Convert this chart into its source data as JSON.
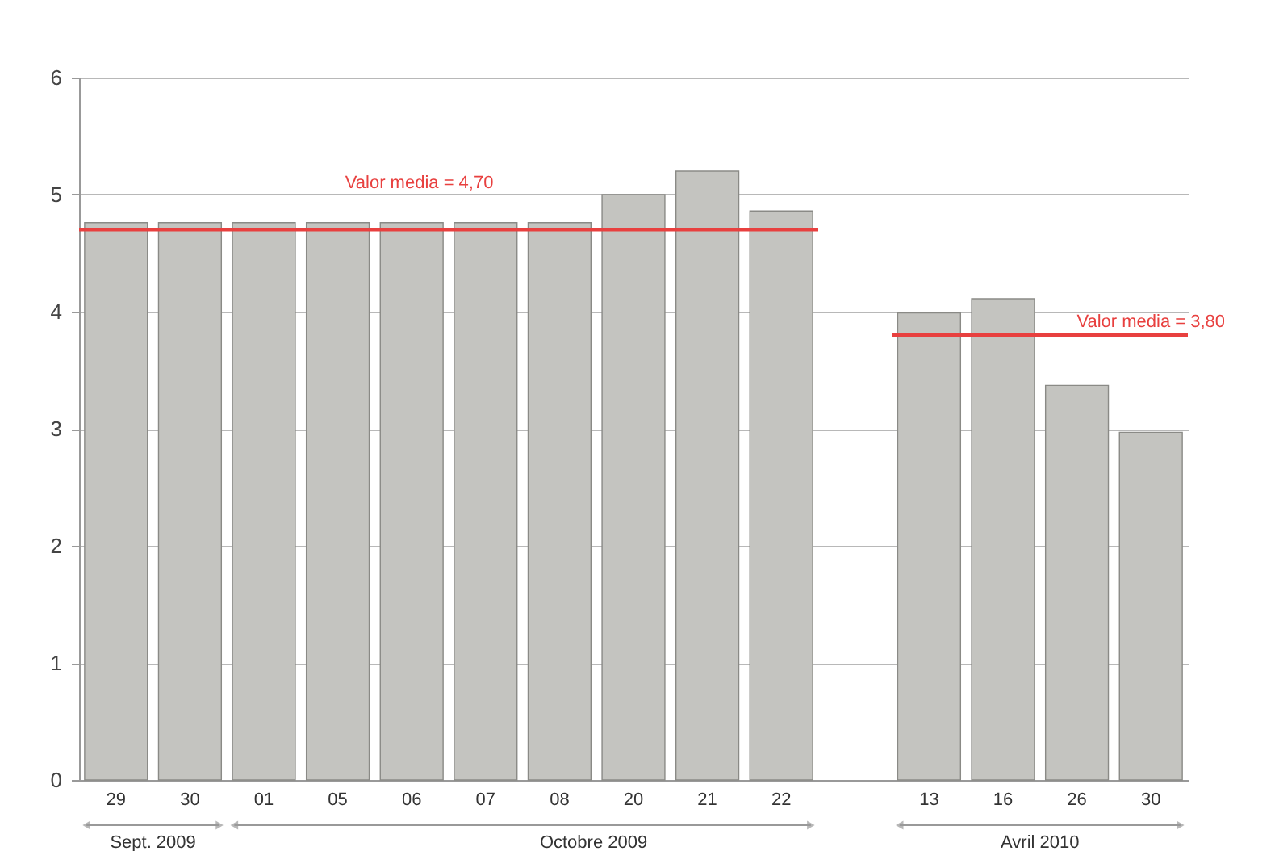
{
  "chart_data": {
    "type": "bar",
    "categories": [
      "29",
      "30",
      "01",
      "05",
      "06",
      "07",
      "08",
      "20",
      "21",
      "22",
      null,
      "13",
      "16",
      "26",
      "30"
    ],
    "values": [
      4.76,
      4.76,
      4.76,
      4.76,
      4.76,
      4.76,
      4.76,
      5.0,
      5.2,
      4.86,
      null,
      3.99,
      4.11,
      3.37,
      2.97
    ],
    "color": "#c4c4c0",
    "ylim": [
      0,
      6
    ],
    "yticks": [
      0,
      1,
      2,
      3,
      4,
      5,
      6
    ],
    "grid": "y",
    "ref_lines": [
      {
        "axis": "y",
        "value": 4.7,
        "label": "Valor media = 4,70",
        "color": "#e8403f"
      },
      {
        "axis": "y",
        "value": 3.8,
        "label": "Valor media = 3,80",
        "color": "#e8403f"
      }
    ],
    "annotations": [
      "Sept. 2009",
      "Octobre 2009",
      "Avril 2010"
    ]
  }
}
